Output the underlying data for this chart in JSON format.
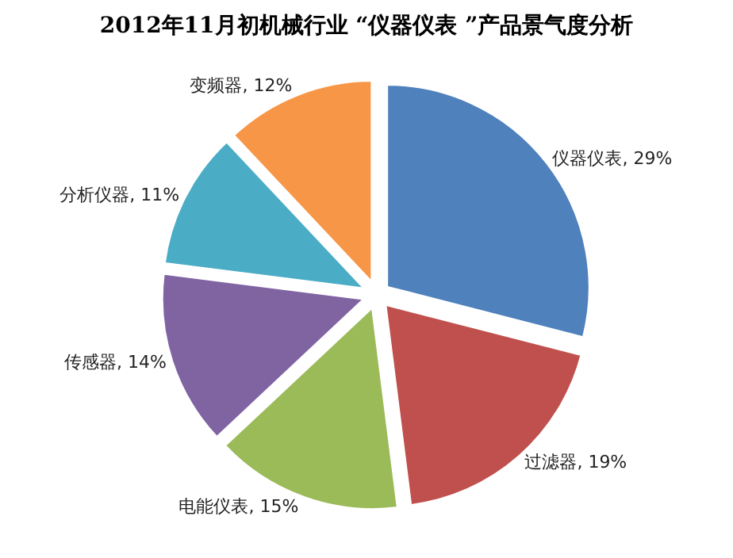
{
  "chart_data": {
    "type": "pie",
    "title": "2012年11月初机械行业 “仪器仪表 ”产品景气度分析",
    "categories": [
      "仪器仪表",
      "过滤器",
      "电能仪表",
      "传感器",
      "分析仪器",
      "变频器"
    ],
    "values": [
      29,
      19,
      15,
      14,
      11,
      12
    ],
    "value_labels": [
      "29%",
      "19%",
      "15%",
      "14%",
      "11%",
      "12%"
    ],
    "colors": [
      "#4f81bd",
      "#c0504d",
      "#9bbb59",
      "#8064a2",
      "#4bacc6",
      "#f79646"
    ],
    "legend": false
  }
}
